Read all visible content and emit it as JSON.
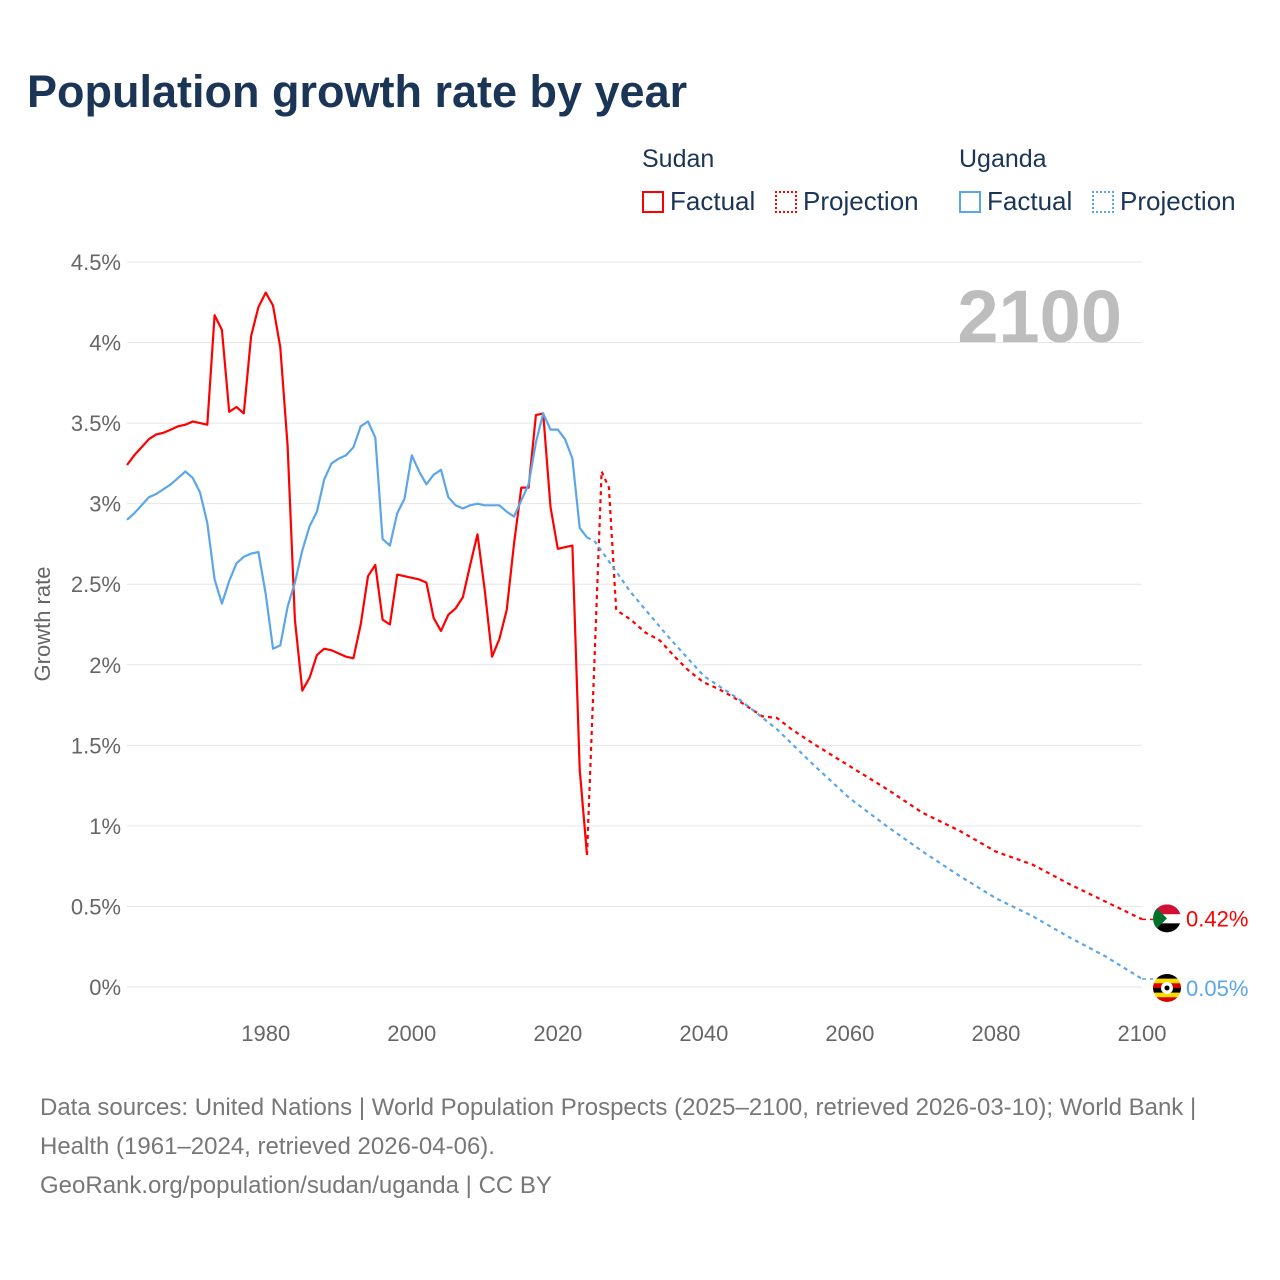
{
  "title": "Population growth rate by year",
  "legend": {
    "groups": [
      {
        "name": "Sudan",
        "factual": "Factual",
        "projection": "Projection",
        "color": "#ff0000"
      },
      {
        "name": "Uganda",
        "factual": "Factual",
        "projection": "Projection",
        "color": "#5ba6e9"
      }
    ]
  },
  "year_label": "2100",
  "footer": {
    "sources": "Data sources: United Nations | World Population Prospects (2025–2100, retrieved 2026-03-10); World Bank | Health (1961–2024, retrieved 2026-04-06).",
    "credit": "GeoRank.org/population/sudan/uganda | CC BY"
  },
  "chart_data": {
    "type": "line",
    "title": "Population growth rate by year",
    "xlabel": "",
    "ylabel": "Growth rate",
    "xlim": [
      1961,
      2100
    ],
    "ylim": [
      0,
      4.5
    ],
    "x_ticks": [
      1980,
      2000,
      2020,
      2040,
      2060,
      2080,
      2100
    ],
    "x_tick_labels": [
      "1980",
      "2000",
      "2020",
      "2040",
      "2060",
      "2080",
      "2100"
    ],
    "y_ticks": [
      0,
      0.5,
      1,
      1.5,
      2,
      2.5,
      3,
      3.5,
      4,
      4.5
    ],
    "y_tick_labels": [
      "0%",
      "0.5%",
      "1%",
      "1.5%",
      "2%",
      "2.5%",
      "3%",
      "3.5%",
      "4%",
      "4.5%"
    ],
    "grid": true,
    "legend_position": "top-right",
    "series": [
      {
        "name": "Sudan Factual",
        "country": "Sudan",
        "kind": "factual",
        "color": "#ff0000",
        "x": [
          1961,
          1962,
          1963,
          1964,
          1965,
          1966,
          1967,
          1968,
          1969,
          1970,
          1971,
          1972,
          1973,
          1974,
          1975,
          1976,
          1977,
          1978,
          1979,
          1980,
          1981,
          1982,
          1983,
          1984,
          1985,
          1986,
          1987,
          1988,
          1989,
          1990,
          1991,
          1992,
          1993,
          1994,
          1995,
          1996,
          1997,
          1998,
          1999,
          2000,
          2001,
          2002,
          2003,
          2004,
          2005,
          2006,
          2007,
          2008,
          2009,
          2010,
          2011,
          2012,
          2013,
          2014,
          2015,
          2016,
          2017,
          2018,
          2019,
          2020,
          2021,
          2022,
          2023,
          2024
        ],
        "y": [
          3.24,
          3.3,
          3.35,
          3.4,
          3.43,
          3.44,
          3.46,
          3.48,
          3.49,
          3.51,
          3.5,
          3.49,
          4.17,
          4.08,
          3.57,
          3.6,
          3.56,
          4.04,
          4.22,
          4.31,
          4.23,
          3.97,
          3.36,
          2.28,
          1.84,
          1.92,
          2.06,
          2.1,
          2.09,
          2.07,
          2.05,
          2.04,
          2.25,
          2.55,
          2.62,
          2.28,
          2.25,
          2.56,
          2.55,
          2.54,
          2.53,
          2.51,
          2.29,
          2.21,
          2.31,
          2.35,
          2.42,
          2.62,
          2.81,
          2.46,
          2.05,
          2.16,
          2.34,
          2.75,
          3.1,
          3.1,
          3.55,
          3.56,
          2.98,
          2.72,
          2.73,
          2.74,
          1.35,
          0.82
        ]
      },
      {
        "name": "Sudan Projection",
        "country": "Sudan",
        "kind": "projection",
        "color": "#ff0000",
        "x": [
          2024,
          2025,
          2026,
          2027,
          2028,
          2030,
          2032,
          2034,
          2036,
          2038,
          2040,
          2042,
          2044,
          2046,
          2048,
          2050,
          2052,
          2055,
          2060,
          2065,
          2070,
          2075,
          2080,
          2085,
          2090,
          2095,
          2100
        ],
        "y": [
          0.82,
          2.0,
          3.2,
          3.1,
          2.34,
          2.28,
          2.2,
          2.15,
          2.05,
          1.96,
          1.89,
          1.85,
          1.8,
          1.74,
          1.68,
          1.67,
          1.6,
          1.51,
          1.37,
          1.23,
          1.08,
          0.97,
          0.84,
          0.76,
          0.64,
          0.53,
          0.42
        ]
      },
      {
        "name": "Uganda Factual",
        "country": "Uganda",
        "kind": "factual",
        "color": "#5ba6e9",
        "x": [
          1961,
          1962,
          1963,
          1964,
          1965,
          1966,
          1967,
          1968,
          1969,
          1970,
          1971,
          1972,
          1973,
          1974,
          1975,
          1976,
          1977,
          1978,
          1979,
          1980,
          1981,
          1982,
          1983,
          1984,
          1985,
          1986,
          1987,
          1988,
          1989,
          1990,
          1991,
          1992,
          1993,
          1994,
          1995,
          1996,
          1997,
          1998,
          1999,
          2000,
          2001,
          2002,
          2003,
          2004,
          2005,
          2006,
          2007,
          2008,
          2009,
          2010,
          2011,
          2012,
          2013,
          2014,
          2015,
          2016,
          2017,
          2018,
          2019,
          2020,
          2021,
          2022,
          2023,
          2024
        ],
        "y": [
          2.9,
          2.94,
          2.99,
          3.04,
          3.06,
          3.09,
          3.12,
          3.16,
          3.2,
          3.16,
          3.07,
          2.88,
          2.53,
          2.38,
          2.52,
          2.63,
          2.67,
          2.69,
          2.7,
          2.44,
          2.1,
          2.12,
          2.36,
          2.51,
          2.71,
          2.86,
          2.95,
          3.15,
          3.25,
          3.28,
          3.3,
          3.35,
          3.48,
          3.51,
          3.41,
          2.78,
          2.74,
          2.94,
          3.03,
          3.3,
          3.2,
          3.12,
          3.18,
          3.21,
          3.04,
          2.99,
          2.97,
          2.99,
          3.0,
          2.99,
          2.99,
          2.99,
          2.95,
          2.92,
          3.02,
          3.12,
          3.38,
          3.56,
          3.46,
          3.46,
          3.4,
          3.28,
          2.85,
          2.79
        ]
      },
      {
        "name": "Uganda Projection",
        "country": "Uganda",
        "kind": "projection",
        "color": "#5ba6e9",
        "x": [
          2024,
          2025,
          2030,
          2035,
          2040,
          2045,
          2050,
          2055,
          2060,
          2065,
          2070,
          2075,
          2080,
          2085,
          2090,
          2095,
          2100
        ],
        "y": [
          2.79,
          2.77,
          2.45,
          2.18,
          1.93,
          1.78,
          1.6,
          1.38,
          1.17,
          1.0,
          0.84,
          0.69,
          0.55,
          0.44,
          0.31,
          0.19,
          0.05
        ]
      }
    ],
    "end_labels": [
      {
        "country": "Sudan",
        "text": "0.42%",
        "value": 0.42,
        "color": "#ff0000"
      },
      {
        "country": "Uganda",
        "text": "0.05%",
        "value": 0.05,
        "color": "#5ba6e9"
      }
    ]
  }
}
